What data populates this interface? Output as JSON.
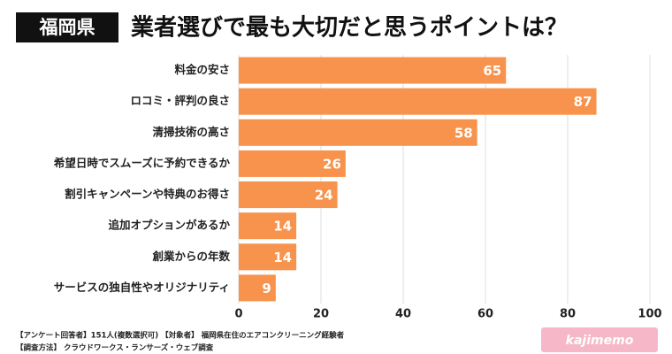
{
  "chart_data": {
    "type": "bar",
    "orientation": "horizontal",
    "region": "福岡県",
    "title": "業者選びで最も大切だと思うポイントは？",
    "categories": [
      "料金の安さ",
      "ロコミ・評判の良さ",
      "清掃技術の高さ",
      "希望日時でスムーズに予約できるか",
      "割引キャンペーンや特典のお得さ",
      "追加オプションがあるか",
      "創業からの年数",
      "サービスの独自性やオリジナリティ"
    ],
    "values": [
      65,
      87,
      58,
      26,
      24,
      14,
      14,
      9
    ],
    "color": "#f7934c",
    "xlim": [
      0,
      100
    ],
    "xticks": [
      0,
      20,
      40,
      60,
      80,
      100
    ],
    "grid": true,
    "notes": [
      "【アンケート回答者】151人(複数選択可) 【対象者】 福岡県在住のエアコンクリーニング経験者",
      "【調査方法】 クラウドワークス・ランサーズ・ウェブ調査"
    ],
    "logo": "kajimemo"
  }
}
